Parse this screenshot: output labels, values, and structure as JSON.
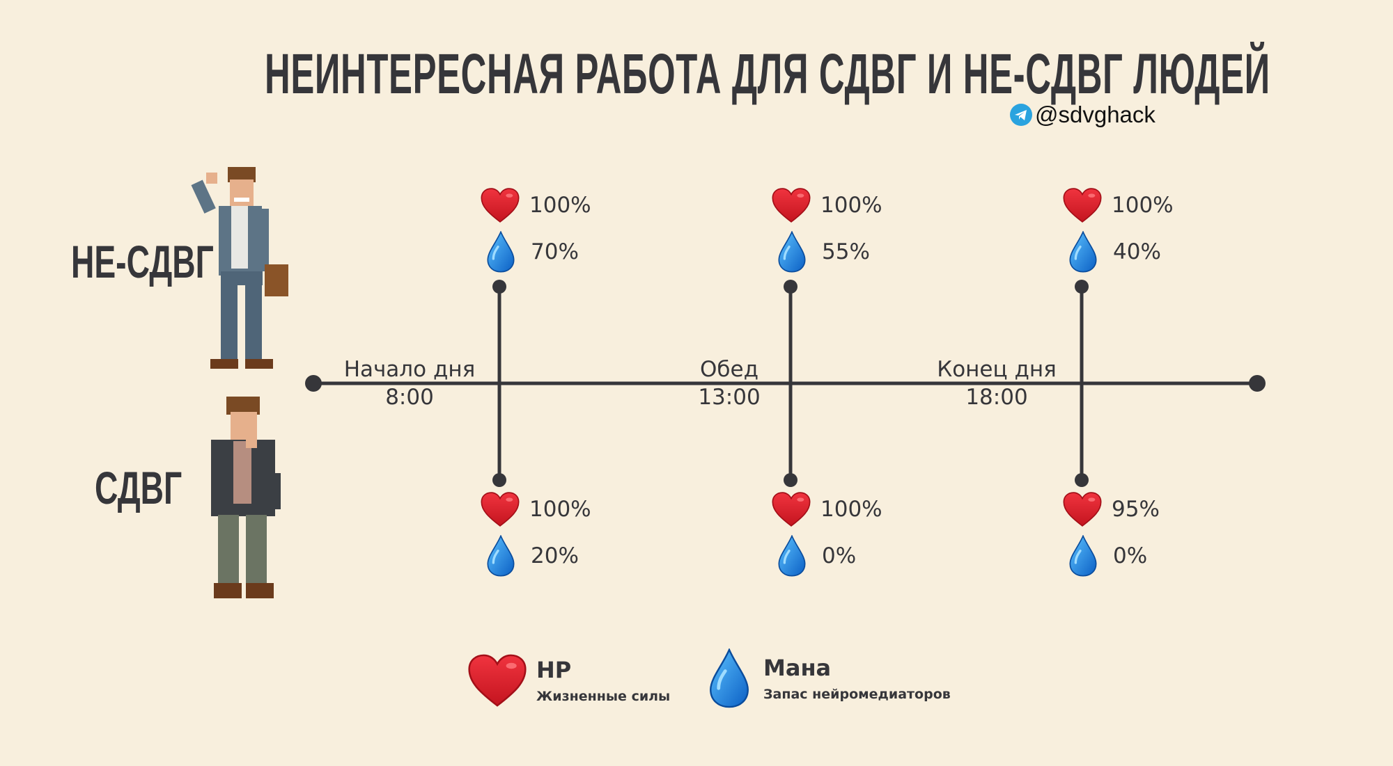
{
  "title": "НЕИНТЕРЕСНАЯ РАБОТА ДЛЯ СДВГ И НЕ-СДВГ ЛЮДЕЙ",
  "handle": {
    "icon": "telegram-icon",
    "text": "@sdvghack"
  },
  "groups": {
    "non_adhd": {
      "label": "НЕ-СДВГ"
    },
    "adhd": {
      "label": "СДВГ"
    }
  },
  "timeline": [
    {
      "label": "Начало дня",
      "time": "8:00"
    },
    {
      "label": "Обед",
      "time": "13:00"
    },
    {
      "label": "Конец дня",
      "time": "18:00"
    }
  ],
  "non_adhd_stats": [
    {
      "hp": "100%",
      "mana": "70%"
    },
    {
      "hp": "100%",
      "mana": "55%"
    },
    {
      "hp": "100%",
      "mana": "40%"
    }
  ],
  "adhd_stats": [
    {
      "hp": "100%",
      "mana": "20%"
    },
    {
      "hp": "100%",
      "mana": "0%"
    },
    {
      "hp": "95%",
      "mana": "0%"
    }
  ],
  "legend": {
    "hp": {
      "title": "HP",
      "subtitle": "Жизненные силы",
      "icon": "heart-icon"
    },
    "mana": {
      "title": "Мана",
      "subtitle": "Запас нейромедиаторов",
      "icon": "drop-icon"
    }
  },
  "colors": {
    "background": "#f8efdd",
    "text": "#36363a",
    "heart": "#e01e2e",
    "drop": "#1e88e5",
    "telegram": "#2aa3df"
  }
}
